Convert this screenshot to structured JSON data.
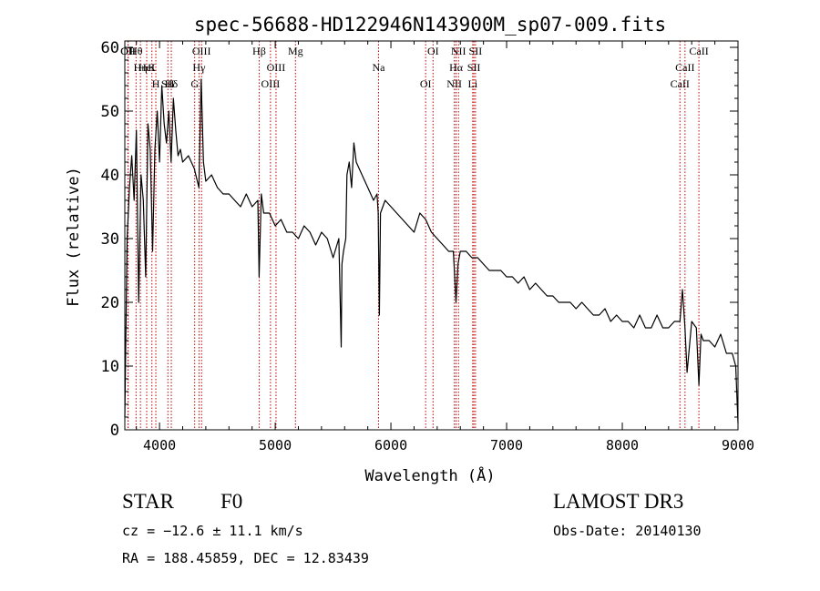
{
  "chart_data": {
    "type": "line",
    "title": "spec-56688-HD122946N143900M_sp07-009.fits",
    "xlabel": "Wavelength (Å)",
    "ylabel": "Flux (relative)",
    "xlim": [
      3700,
      9000
    ],
    "ylim": [
      0,
      61
    ],
    "xticks": [
      4000,
      5000,
      6000,
      7000,
      8000,
      9000
    ],
    "yticks": [
      0,
      10,
      20,
      30,
      40,
      50,
      60
    ],
    "grid": false,
    "series": [
      {
        "name": "flux",
        "x": [
          3700,
          3720,
          3740,
          3760,
          3780,
          3800,
          3820,
          3840,
          3860,
          3880,
          3900,
          3920,
          3940,
          3960,
          3980,
          4000,
          4020,
          4040,
          4060,
          4080,
          4100,
          4120,
          4140,
          4160,
          4180,
          4200,
          4250,
          4300,
          4340,
          4360,
          4380,
          4400,
          4450,
          4500,
          4550,
          4600,
          4650,
          4700,
          4750,
          4800,
          4850,
          4861,
          4880,
          4900,
          4950,
          5000,
          5050,
          5100,
          5150,
          5200,
          5250,
          5300,
          5350,
          5400,
          5450,
          5500,
          5550,
          5570,
          5577,
          5590,
          5610,
          5620,
          5640,
          5660,
          5680,
          5700,
          5750,
          5800,
          5850,
          5880,
          5890,
          5900,
          5910,
          5950,
          6000,
          6050,
          6100,
          6150,
          6200,
          6250,
          6300,
          6350,
          6400,
          6450,
          6500,
          6540,
          6563,
          6580,
          6600,
          6650,
          6700,
          6750,
          6800,
          6850,
          6900,
          6950,
          7000,
          7050,
          7100,
          7150,
          7200,
          7250,
          7300,
          7350,
          7400,
          7450,
          7500,
          7550,
          7600,
          7650,
          7700,
          7750,
          7800,
          7850,
          7900,
          7950,
          8000,
          8050,
          8100,
          8150,
          8200,
          8250,
          8300,
          8350,
          8400,
          8450,
          8498,
          8520,
          8542,
          8560,
          8600,
          8640,
          8662,
          8680,
          8700,
          8750,
          8800,
          8850,
          8900,
          8950,
          8980,
          9000
        ],
        "values": [
          2,
          30,
          38,
          43,
          36,
          47,
          20,
          40,
          36,
          24,
          48,
          44,
          28,
          44,
          50,
          42,
          54,
          48,
          45,
          50,
          42,
          52,
          47,
          43,
          44,
          42,
          43,
          41,
          38,
          55,
          42,
          39,
          40,
          38,
          37,
          37,
          36,
          35,
          37,
          35,
          36,
          24,
          37,
          34,
          34,
          32,
          33,
          31,
          31,
          30,
          32,
          31,
          29,
          31,
          30,
          27,
          30,
          13,
          26,
          28,
          30,
          40,
          42,
          38,
          45,
          42,
          40,
          38,
          36,
          37,
          34,
          18,
          34,
          36,
          35,
          34,
          33,
          32,
          31,
          34,
          33,
          31,
          30,
          29,
          28,
          28,
          20,
          26,
          28,
          28,
          27,
          27,
          26,
          25,
          25,
          25,
          24,
          24,
          23,
          24,
          22,
          23,
          22,
          21,
          21,
          20,
          20,
          20,
          19,
          20,
          19,
          18,
          18,
          19,
          17,
          18,
          17,
          17,
          16,
          18,
          16,
          16,
          18,
          16,
          16,
          17,
          17,
          22,
          16,
          9,
          17,
          16,
          7,
          15,
          14,
          14,
          13,
          15,
          12,
          12,
          10,
          1
        ]
      }
    ],
    "lines": [
      {
        "label": "Hθ",
        "x": 3797
      },
      {
        "label": "K",
        "x": 3934
      },
      {
        "label": "Hδ",
        "x": 4102
      },
      {
        "label": "OII",
        "x": 3727
      },
      {
        "label": "HeI",
        "x": 3889
      },
      {
        "label": "SII",
        "x": 4072
      },
      {
        "label": "OII",
        "x": 3729
      },
      {
        "label": "Hη",
        "x": 3835
      },
      {
        "label": "H",
        "x": 3968
      },
      {
        "label": "OIII",
        "x": 4363
      },
      {
        "label": "Hγ",
        "x": 4341
      },
      {
        "label": "G",
        "x": 4304
      },
      {
        "label": "Hβ",
        "x": 4861
      },
      {
        "label": "OIII",
        "x": 5007
      },
      {
        "label": "OIII",
        "x": 4959
      },
      {
        "label": "Mg",
        "x": 5175
      },
      {
        "label": "Na",
        "x": 5893
      },
      {
        "label": "OI",
        "x": 6300
      },
      {
        "label": "OI",
        "x": 6364
      },
      {
        "label": "Hα",
        "x": 6563
      },
      {
        "label": "NII",
        "x": 6548
      },
      {
        "label": "NII",
        "x": 6584
      },
      {
        "label": "SII",
        "x": 6717
      },
      {
        "label": "Li",
        "x": 6707
      },
      {
        "label": "SII",
        "x": 6731
      },
      {
        "label": "CaII",
        "x": 8542
      },
      {
        "label": "CaII",
        "x": 8498
      },
      {
        "label": "CaII",
        "x": 8662
      }
    ]
  },
  "info": {
    "object_class": "STAR",
    "subclass": "F0",
    "survey": "LAMOST DR3",
    "redshift": "cz = −12.6 ± 11.1 km/s",
    "obs_date": "Obs-Date: 20140130",
    "coords": "RA = 188.45859, DEC =  12.83439"
  }
}
